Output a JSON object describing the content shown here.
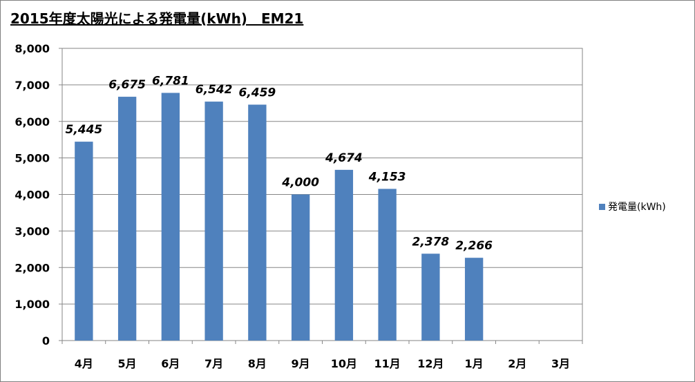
{
  "chart_data": {
    "type": "bar",
    "title": "2015年度太陽光による発電量(kWh)　EM21",
    "categories": [
      "4月",
      "5月",
      "6月",
      "7月",
      "8月",
      "9月",
      "10月",
      "11月",
      "12月",
      "1月",
      "2月",
      "3月"
    ],
    "series": [
      {
        "name": "発電量(kWh)",
        "color": "#4f81bd",
        "values": [
          5445,
          6675,
          6781,
          6542,
          6459,
          4000,
          4674,
          4153,
          2378,
          2266,
          null,
          null
        ],
        "labels": [
          "5,445",
          "6,675",
          "6,781",
          "6,542",
          "6,459",
          "4,000",
          "4,674",
          "4,153",
          "2,378",
          "2,266",
          "",
          ""
        ]
      }
    ],
    "ylim": [
      0,
      8000
    ],
    "yticks": [
      0,
      1000,
      2000,
      3000,
      4000,
      5000,
      6000,
      7000,
      8000
    ],
    "ytick_labels": [
      "0",
      "1,000",
      "2,000",
      "3,000",
      "4,000",
      "5,000",
      "6,000",
      "7,000",
      "8,000"
    ],
    "grid": true,
    "legend_position": "right"
  }
}
